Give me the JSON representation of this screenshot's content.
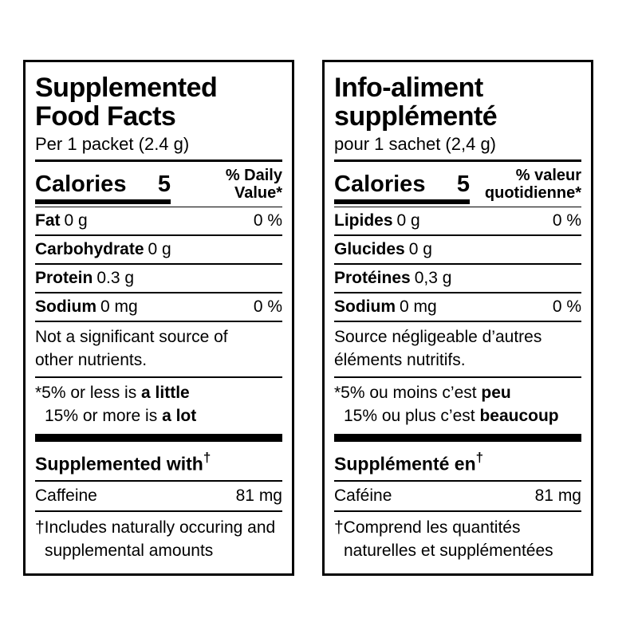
{
  "english": {
    "title_line1": "Supplemented",
    "title_line2": "Food Facts",
    "serving": "Per 1 packet (2.4 g)",
    "calories_label": "Calories",
    "calories_value": "5",
    "dv_line1": "% Daily",
    "dv_line2": "Value*",
    "nutrients": [
      {
        "name": "Fat",
        "amount": "0 g",
        "dv": "0 %"
      },
      {
        "name": "Carbohydrate",
        "amount": "0 g",
        "dv": ""
      },
      {
        "name": "Protein",
        "amount": "0.3 g",
        "dv": ""
      },
      {
        "name": "Sodium",
        "amount": "0 mg",
        "dv": "0 %"
      }
    ],
    "note_line1": "Not a significant source of",
    "note_line2": "other nutrients.",
    "legend_line1_text": "*5% or less is ",
    "legend_line1_bold": "a little",
    "legend_line2_text": "15% or more is ",
    "legend_line2_bold": "a lot",
    "supplemented_heading": "Supplemented with",
    "dagger": "†",
    "supplement_name": "Caffeine",
    "supplement_amount": "81 mg",
    "footnote_line1": "†Includes naturally occuring and",
    "footnote_line2": "supplemental amounts"
  },
  "french": {
    "title_line1": "Info-aliment",
    "title_line2": "supplémenté",
    "serving": "pour 1 sachet (2,4 g)",
    "calories_label": "Calories",
    "calories_value": "5",
    "dv_line1": "% valeur",
    "dv_line2": "quotidienne*",
    "nutrients": [
      {
        "name": "Lipides",
        "amount": "0 g",
        "dv": "0 %"
      },
      {
        "name": "Glucides",
        "amount": "0 g",
        "dv": ""
      },
      {
        "name": "Protéines",
        "amount": "0,3 g",
        "dv": ""
      },
      {
        "name": "Sodium",
        "amount": "0 mg",
        "dv": "0 %"
      }
    ],
    "note_line1": "Source négligeable d’autres",
    "note_line2": "éléments nutritifs.",
    "legend_line1_text": "*5% ou moins c’est ",
    "legend_line1_bold": "peu",
    "legend_line2_text": "15% ou plus c’est ",
    "legend_line2_bold": "beaucoup",
    "supplemented_heading": "Supplémenté en",
    "dagger": "†",
    "supplement_name": "Caféine",
    "supplement_amount": "81 mg",
    "footnote_line1": "†Comprend les quantités",
    "footnote_line2": "naturelles et supplémentées"
  }
}
